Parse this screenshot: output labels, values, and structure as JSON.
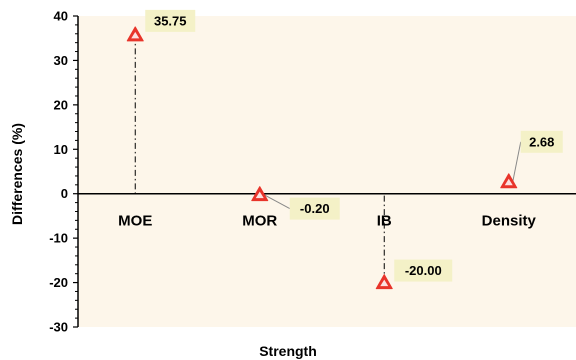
{
  "chart_data": {
    "type": "scatter",
    "categories": [
      "MOE",
      "MOR",
      "IB",
      "Density"
    ],
    "values": [
      35.75,
      -0.2,
      -20.0,
      2.68
    ],
    "data_labels": [
      "35.75",
      "-0.20",
      "-20.00",
      "2.68"
    ],
    "xlabel": "Strength",
    "ylabel": "Differences (%)",
    "ylim": [
      -30,
      40
    ],
    "yticks": [
      40,
      30,
      20,
      10,
      0,
      -10,
      -20,
      -30
    ],
    "ytick_labels": [
      "40",
      "30",
      "20",
      "10",
      "0",
      "-10",
      "-20",
      "-30"
    ],
    "grid": false,
    "drop_lines": true,
    "marker": "triangle",
    "colors": {
      "plot_background": "#fdf6ea",
      "marker_fill": "#e8342a",
      "marker_stroke": "#ffffff",
      "label_background": "#f4f1c7",
      "axis": "#000000",
      "drop_line": "#000000"
    }
  }
}
